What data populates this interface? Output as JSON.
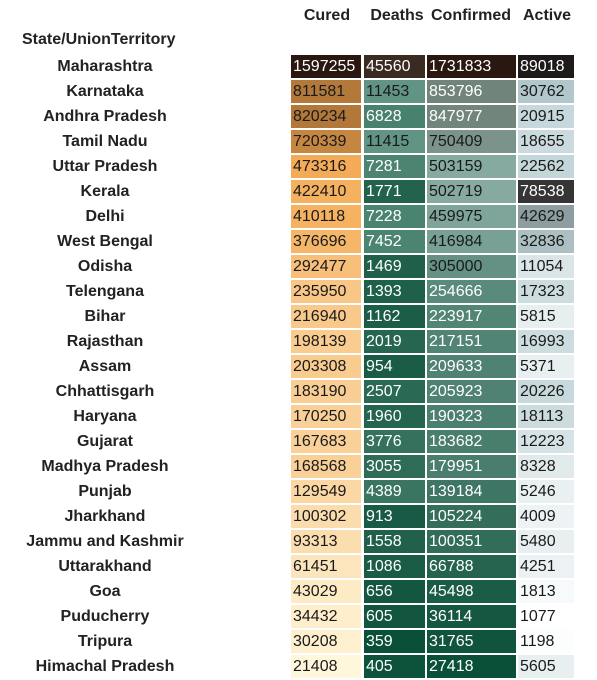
{
  "chart_data": {
    "type": "table",
    "index_label": "State/UnionTerritory",
    "columns": [
      "Cured",
      "Deaths",
      "Confirmed",
      "Active"
    ],
    "rows": [
      {
        "state": "Maharashtra",
        "values": [
          1597255,
          45560,
          1731833,
          89018
        ]
      },
      {
        "state": "Karnataka",
        "values": [
          811581,
          11453,
          853796,
          30762
        ]
      },
      {
        "state": "Andhra Pradesh",
        "values": [
          820234,
          6828,
          847977,
          20915
        ]
      },
      {
        "state": "Tamil Nadu",
        "values": [
          720339,
          11415,
          750409,
          18655
        ]
      },
      {
        "state": "Uttar Pradesh",
        "values": [
          473316,
          7281,
          503159,
          22562
        ]
      },
      {
        "state": "Kerala",
        "values": [
          422410,
          1771,
          502719,
          78538
        ]
      },
      {
        "state": "Delhi",
        "values": [
          410118,
          7228,
          459975,
          42629
        ]
      },
      {
        "state": "West Bengal",
        "values": [
          376696,
          7452,
          416984,
          32836
        ]
      },
      {
        "state": "Odisha",
        "values": [
          292477,
          1469,
          305000,
          11054
        ]
      },
      {
        "state": "Telengana",
        "values": [
          235950,
          1393,
          254666,
          17323
        ]
      },
      {
        "state": "Bihar",
        "values": [
          216940,
          1162,
          223917,
          5815
        ]
      },
      {
        "state": "Rajasthan",
        "values": [
          198139,
          2019,
          217151,
          16993
        ]
      },
      {
        "state": "Assam",
        "values": [
          203308,
          954,
          209633,
          5371
        ]
      },
      {
        "state": "Chhattisgarh",
        "values": [
          183190,
          2507,
          205923,
          20226
        ]
      },
      {
        "state": "Haryana",
        "values": [
          170250,
          1960,
          190323,
          18113
        ]
      },
      {
        "state": "Gujarat",
        "values": [
          167683,
          3776,
          183682,
          12223
        ]
      },
      {
        "state": "Madhya Pradesh",
        "values": [
          168568,
          3055,
          179951,
          8328
        ]
      },
      {
        "state": "Punjab",
        "values": [
          129549,
          4389,
          139184,
          5246
        ]
      },
      {
        "state": "Jharkhand",
        "values": [
          100302,
          913,
          105224,
          4009
        ]
      },
      {
        "state": "Jammu and Kashmir",
        "values": [
          93313,
          1558,
          100351,
          5480
        ]
      },
      {
        "state": "Uttarakhand",
        "values": [
          61451,
          1086,
          66788,
          4251
        ]
      },
      {
        "state": "Goa",
        "values": [
          43029,
          656,
          45498,
          1813
        ]
      },
      {
        "state": "Puducherry",
        "values": [
          34432,
          605,
          36114,
          1077
        ]
      },
      {
        "state": "Tripura",
        "values": [
          30208,
          359,
          31765,
          1198
        ]
      },
      {
        "state": "Himachal Pradesh",
        "values": [
          21408,
          405,
          27418,
          5605
        ]
      }
    ],
    "column_colormaps": {
      "Cured": [
        "#fff7dc",
        "#f3a74f",
        "#2a1810"
      ],
      "Deaths": [
        "#0a4f38",
        "#6f9f90",
        "#3a2a20"
      ],
      "Confirmed": [
        "#0a4f38",
        "#8fb1a8",
        "#2a1810"
      ],
      "Active": [
        "#ffffff",
        "#b9cfd3",
        "#1e1a1a"
      ]
    }
  }
}
